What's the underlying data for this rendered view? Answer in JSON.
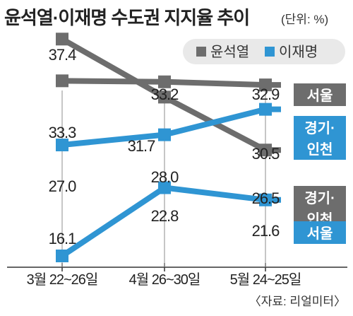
{
  "title": "윤석열·이재명 수도권 지지율 추이",
  "unit": "(단위: %)",
  "source": "〈자료: 리얼미터〉",
  "colors": {
    "yoon": "#6d6d6d",
    "lee": "#2f95d3"
  },
  "chart_data": {
    "type": "line",
    "title": "윤석열·이재명 수도권 지지율 추이",
    "unit": "%",
    "categories": [
      "3월 22~26일",
      "4월 26~30일",
      "5월 24~25일"
    ],
    "ylim": [
      14,
      40
    ],
    "grid": false,
    "legend": {
      "position": "top-right",
      "entries": [
        "윤석열",
        "이재명"
      ]
    },
    "series": [
      {
        "name": "윤석열",
        "region": "서울",
        "values": [
          37.4,
          31.7,
          26.5
        ],
        "labels": [
          "37.4",
          "31.7",
          "26.5"
        ],
        "end_label": [
          "경기·",
          "인천"
        ]
      },
      {
        "name": "윤석열",
        "region": "경기·인천",
        "values": [
          33.3,
          33.2,
          32.9
        ],
        "labels": [
          "33.3",
          "33.2",
          "32.9"
        ],
        "end_label": [
          "서울"
        ]
      },
      {
        "name": "이재명",
        "region": "경기·인천",
        "values": [
          27.0,
          28.0,
          30.5
        ],
        "labels": [
          "27.0",
          "28.0",
          "30.5"
        ],
        "end_label": [
          "경기·",
          "인천"
        ]
      },
      {
        "name": "이재명",
        "region": "서울",
        "values": [
          16.1,
          22.8,
          21.6
        ],
        "labels": [
          "16.1",
          "22.8",
          "21.6"
        ],
        "end_label": [
          "서울"
        ]
      }
    ]
  }
}
